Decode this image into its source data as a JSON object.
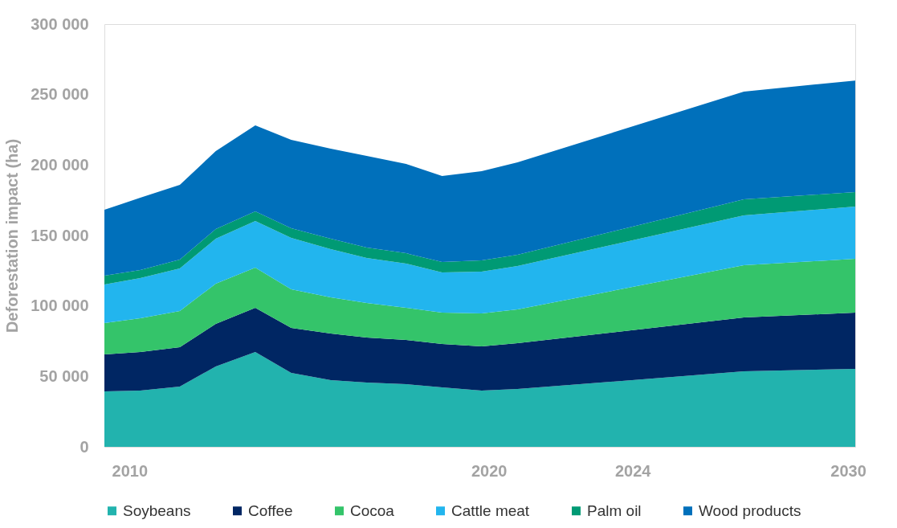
{
  "chart_data": {
    "type": "area",
    "stacked": true,
    "ylabel": "Deforestation impact (ha)",
    "x": [
      2009.3,
      2010.3,
      2011.4,
      2012.4,
      2013.5,
      2014.5,
      2015.6,
      2016.6,
      2017.7,
      2018.7,
      2019.8,
      2020.8,
      2027.1,
      2030.2
    ],
    "xlim": [
      2009.3,
      2030.2
    ],
    "xticks": [
      2010,
      2020,
      2024,
      2030
    ],
    "ylim": [
      0,
      300000
    ],
    "yticks": [
      {
        "value": 0,
        "label": "0"
      },
      {
        "value": 50000,
        "label": "50 000"
      },
      {
        "value": 100000,
        "label": "100 000"
      },
      {
        "value": 150000,
        "label": "150 000"
      },
      {
        "value": 200000,
        "label": "200 000"
      },
      {
        "value": 250000,
        "label": "250 000"
      },
      {
        "value": 300000,
        "label": "300 000"
      }
    ],
    "grid": false,
    "legend": "bottom",
    "series": [
      {
        "name": "Soybeans",
        "color": "#22b3ae",
        "values": [
          39400,
          39900,
          42800,
          57000,
          67300,
          52500,
          47300,
          45600,
          44500,
          42200,
          39900,
          41000,
          53600,
          55300
        ]
      },
      {
        "name": "Coffee",
        "color": "#002663",
        "values": [
          26200,
          27400,
          27900,
          30200,
          31300,
          31900,
          33100,
          31900,
          31400,
          30800,
          31400,
          32600,
          38200,
          39900
        ]
      },
      {
        "name": "Cocoa",
        "color": "#34c46a",
        "values": [
          22200,
          23900,
          25700,
          28600,
          28600,
          27400,
          25700,
          24600,
          22800,
          22200,
          23400,
          23900,
          37100,
          38200
        ]
      },
      {
        "name": "Cattle meat",
        "color": "#22b5ee",
        "values": [
          27400,
          28600,
          30200,
          31900,
          33100,
          36500,
          34200,
          31900,
          31300,
          28500,
          29600,
          30800,
          35300,
          37100
        ]
      },
      {
        "name": "Palm oil",
        "color": "#009a74",
        "values": [
          6300,
          5700,
          6300,
          6900,
          6800,
          6800,
          7400,
          7400,
          7400,
          7500,
          8000,
          8000,
          11400,
          10300
        ]
      },
      {
        "name": "Wood products",
        "color": "#0070bb",
        "values": [
          46700,
          51300,
          53000,
          55300,
          61000,
          62800,
          63900,
          65000,
          63300,
          61000,
          63300,
          65600,
          76500,
          79200
        ]
      }
    ]
  }
}
